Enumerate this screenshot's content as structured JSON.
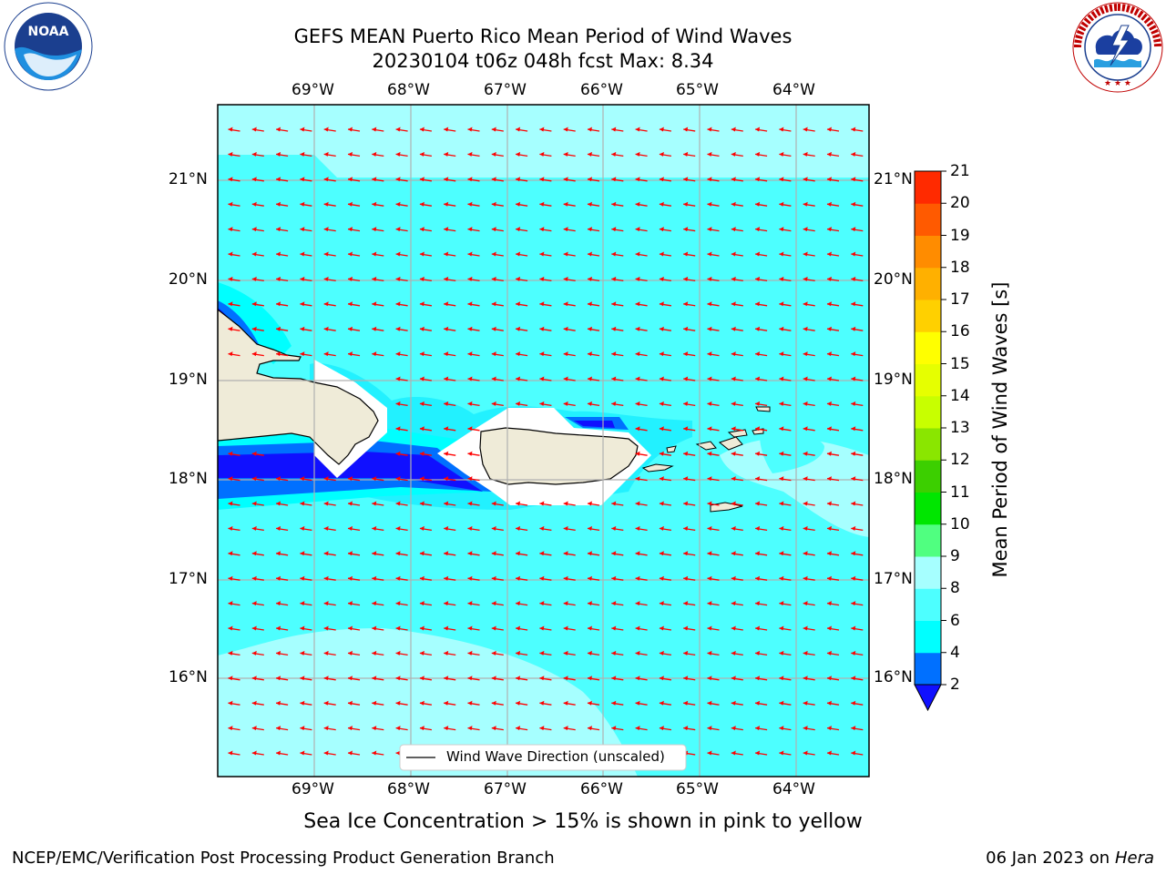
{
  "title": {
    "line1": "GEFS MEAN Puerto Rico Mean Period of Wind Waves",
    "line2": "20230104 t06z 048h fcst   Max: 8.34"
  },
  "logos": {
    "noaa": {
      "text": "NOAA",
      "ring_text": "NATIONAL OCEANIC AND ATMOSPHERIC ADMINISTRATION · U.S. DEPARTMENT OF COMMERCE"
    },
    "nws": {
      "ring_text": "NATIONAL WEATHER SERVICE"
    }
  },
  "map": {
    "lon_labels": [
      "69°W",
      "68°W",
      "67°W",
      "66°W",
      "65°W",
      "64°W"
    ],
    "lat_labels": [
      "21°N",
      "20°N",
      "19°N",
      "18°N",
      "17°N",
      "16°N"
    ],
    "legend_label": "Wind Wave Direction (unscaled)",
    "arrow_direction": "toward west",
    "colors": {
      "ocean": "#4dffff",
      "light": "#a6ffff",
      "mid": "#00e6ff",
      "land": "#efebd8",
      "arrow": "#ff0000"
    }
  },
  "colorbar": {
    "label": "Mean Period of Wind Waves [s]",
    "ticks": [
      "2",
      "4",
      "6",
      "8",
      "9",
      "10",
      "11",
      "12",
      "13",
      "14",
      "15",
      "16",
      "17",
      "18",
      "19",
      "20",
      "21"
    ],
    "colors": [
      "#0070ff",
      "#00ffff",
      "#4dffff",
      "#a6ffff",
      "#50ff80",
      "#00e600",
      "#3ccf00",
      "#8ae600",
      "#c8ff00",
      "#e6ff00",
      "#ffff00",
      "#ffd000",
      "#ffb000",
      "#ff8c00",
      "#ff5a00",
      "#ff2a00"
    ],
    "under_color": "#1010ff"
  },
  "caption": "Sea Ice Concentration > 15% is shown in pink to yellow",
  "footer": {
    "left": "NCEP/EMC/Verification Post Processing Product Generation Branch",
    "right_date": "06 Jan 2023 on ",
    "right_host": "Hera"
  }
}
